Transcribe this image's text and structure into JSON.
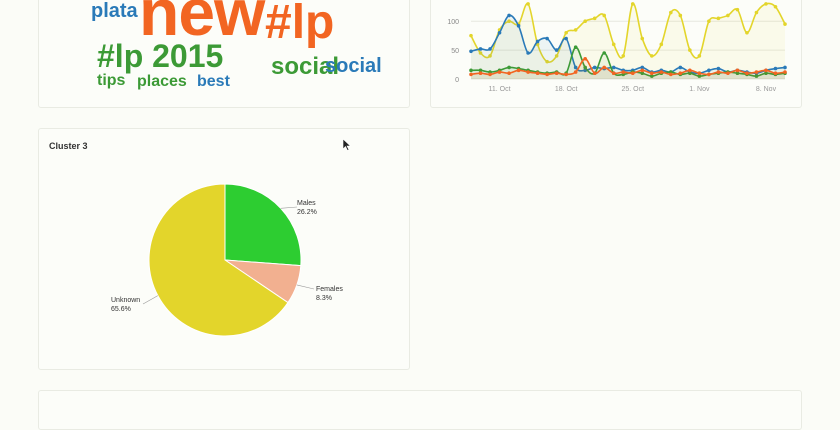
{
  "wordcloud": {
    "words": [
      {
        "text": "new",
        "color": "#f26522"
      },
      {
        "text": "plata",
        "color": "#2a7ab8"
      },
      {
        "text": "#lp",
        "color": "#f26522"
      },
      {
        "text": "2015",
        "color": "#3c9a36"
      },
      {
        "text": "#lp 2015",
        "color": "#3c9a36"
      },
      {
        "text": "social",
        "color": "#3c9a36"
      },
      {
        "text": "social",
        "color": "#2a7ab8"
      },
      {
        "text": "tips",
        "color": "#3c9a36"
      },
      {
        "text": "places",
        "color": "#3c9a36"
      },
      {
        "text": "best",
        "color": "#2a7ab8"
      }
    ]
  },
  "chart_data": [
    {
      "type": "line",
      "x": [
        "Oct 8",
        "Oct 9",
        "Oct 10",
        "Oct 11",
        "Oct 12",
        "Oct 13",
        "Oct 14",
        "Oct 15",
        "Oct 16",
        "Oct 17",
        "Oct 18",
        "Oct 19",
        "Oct 20",
        "Oct 21",
        "Oct 22",
        "Oct 23",
        "Oct 24",
        "Oct 25",
        "Oct 26",
        "Oct 27",
        "Oct 28",
        "Oct 29",
        "Oct 30",
        "Oct 31",
        "Nov 1",
        "Nov 2",
        "Nov 3",
        "Nov 4",
        "Nov 5",
        "Nov 6",
        "Nov 7",
        "Nov 8",
        "Nov 9",
        "Nov 10"
      ],
      "xticks": [
        "11. Oct",
        "18. Oct",
        "25. Oct",
        "1. Nov",
        "8. Nov"
      ],
      "yticks": [
        "0",
        "50",
        "100"
      ],
      "ylim": [
        0,
        135
      ],
      "series": [
        {
          "color": "#e3d52b",
          "values": [
            75,
            45,
            40,
            85,
            100,
            95,
            130,
            60,
            30,
            40,
            80,
            85,
            100,
            105,
            110,
            60,
            40,
            130,
            70,
            40,
            60,
            115,
            110,
            50,
            40,
            100,
            105,
            110,
            120,
            80,
            115,
            130,
            125,
            95
          ]
        },
        {
          "color": "#2a7ab8",
          "values": [
            48,
            52,
            52,
            80,
            110,
            92,
            45,
            65,
            70,
            50,
            70,
            20,
            15,
            20,
            18,
            20,
            15,
            15,
            20,
            12,
            15,
            12,
            20,
            12,
            10,
            15,
            18,
            12,
            15,
            12,
            10,
            15,
            18,
            20
          ]
        },
        {
          "color": "#3c9a36",
          "values": [
            15,
            15,
            12,
            15,
            20,
            18,
            15,
            12,
            10,
            12,
            10,
            55,
            20,
            10,
            45,
            10,
            8,
            12,
            10,
            5,
            10,
            12,
            8,
            10,
            5,
            8,
            10,
            12,
            10,
            8,
            5,
            10,
            8,
            10
          ]
        },
        {
          "color": "#f26522",
          "values": [
            8,
            10,
            8,
            12,
            10,
            15,
            12,
            10,
            8,
            10,
            8,
            12,
            35,
            10,
            20,
            10,
            12,
            10,
            15,
            10,
            12,
            8,
            10,
            15,
            10,
            8,
            12,
            10,
            15,
            10,
            12,
            15,
            10,
            12
          ]
        }
      ]
    },
    {
      "type": "pie",
      "title": "Cluster 3",
      "labels": [
        "Males",
        "Females",
        "Unknown"
      ],
      "values": [
        26.2,
        8.3,
        65.6
      ],
      "value_labels": [
        "26.2%",
        "8.3%",
        "65.6%"
      ],
      "colors": [
        "#2dcd31",
        "#f2b090",
        "#e3d52b"
      ]
    }
  ]
}
